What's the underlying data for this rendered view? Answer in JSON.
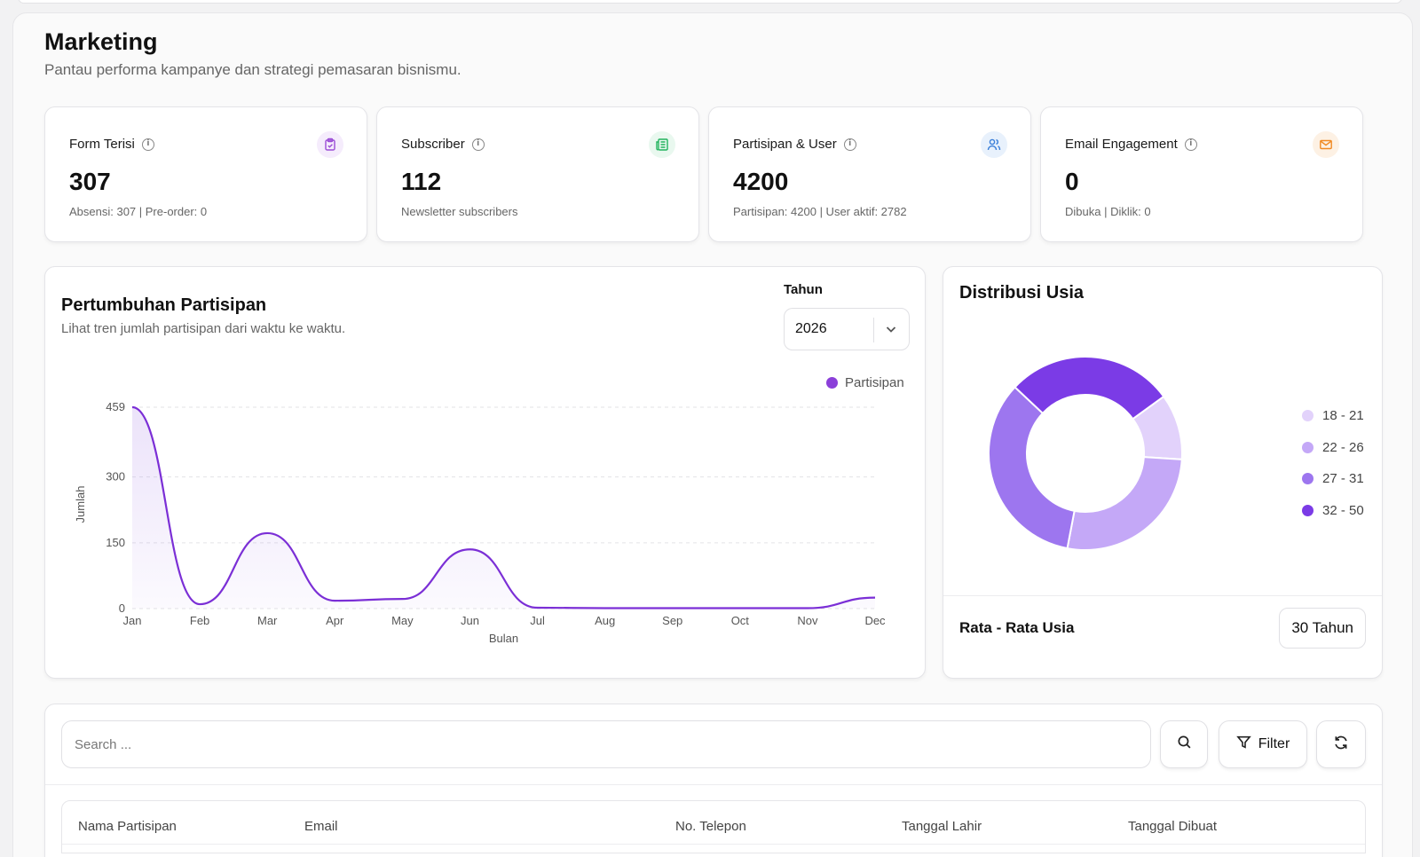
{
  "page": {
    "title": "Marketing",
    "subtitle": "Pantau performa kampanye dan strategi pemasaran bisnismu."
  },
  "stats": [
    {
      "label": "Form Terisi",
      "value": "307",
      "sub": "Absensi: 307 | Pre-order: 0",
      "icon": "clipboard-icon",
      "color": "#9b4dd6"
    },
    {
      "label": "Subscriber",
      "value": "112",
      "sub": "Newsletter subscribers",
      "icon": "newspaper-icon",
      "color": "#22b35e"
    },
    {
      "label": "Partisipan & User",
      "value": "4200",
      "sub": "Partisipan: 4200 | User aktif: 2782",
      "icon": "users-icon",
      "color": "#3b7fd9"
    },
    {
      "label": "Email Engagement",
      "value": "0",
      "sub": "Dibuka | Diklik: 0",
      "icon": "mail-icon",
      "color": "#f08a24"
    }
  ],
  "growth": {
    "title": "Pertumbuhan Partisipan",
    "subtitle": "Lihat tren jumlah partisipan dari waktu ke waktu.",
    "year_label": "Tahun",
    "year_value": "2026"
  },
  "age": {
    "title": "Distribusi Usia",
    "avg_label": "Rata - Rata Usia",
    "avg_value": "30 Tahun"
  },
  "table": {
    "search_placeholder": "Search ...",
    "filter_label": "Filter",
    "columns": [
      "Nama Partisipan",
      "Email",
      "No. Telepon",
      "Tanggal Lahir",
      "Tanggal Dibuat"
    ]
  },
  "chart_data": [
    {
      "type": "area",
      "xlabel": "Bulan",
      "ylabel": "Jumlah",
      "categories": [
        "Jan",
        "Feb",
        "Mar",
        "Apr",
        "May",
        "Jun",
        "Jul",
        "Aug",
        "Sep",
        "Oct",
        "Nov",
        "Dec"
      ],
      "series": [
        {
          "name": "Partisipan",
          "values": [
            459,
            10,
            172,
            18,
            22,
            135,
            2,
            1,
            1,
            1,
            1,
            25
          ],
          "color": "#7b2fd6"
        }
      ],
      "yticks": [
        0,
        150,
        300,
        459
      ],
      "ylim": [
        0,
        459
      ],
      "grid": true,
      "legend": "top-right"
    },
    {
      "type": "pie",
      "donut": true,
      "labels": [
        "18 - 21",
        "22 - 26",
        "27 - 31",
        "32 - 50"
      ],
      "values": [
        11,
        27,
        34,
        28
      ],
      "colors": [
        "#e2d2fb",
        "#c4a8f7",
        "#9d76ef",
        "#7b3be6"
      ],
      "legend": "right"
    }
  ]
}
